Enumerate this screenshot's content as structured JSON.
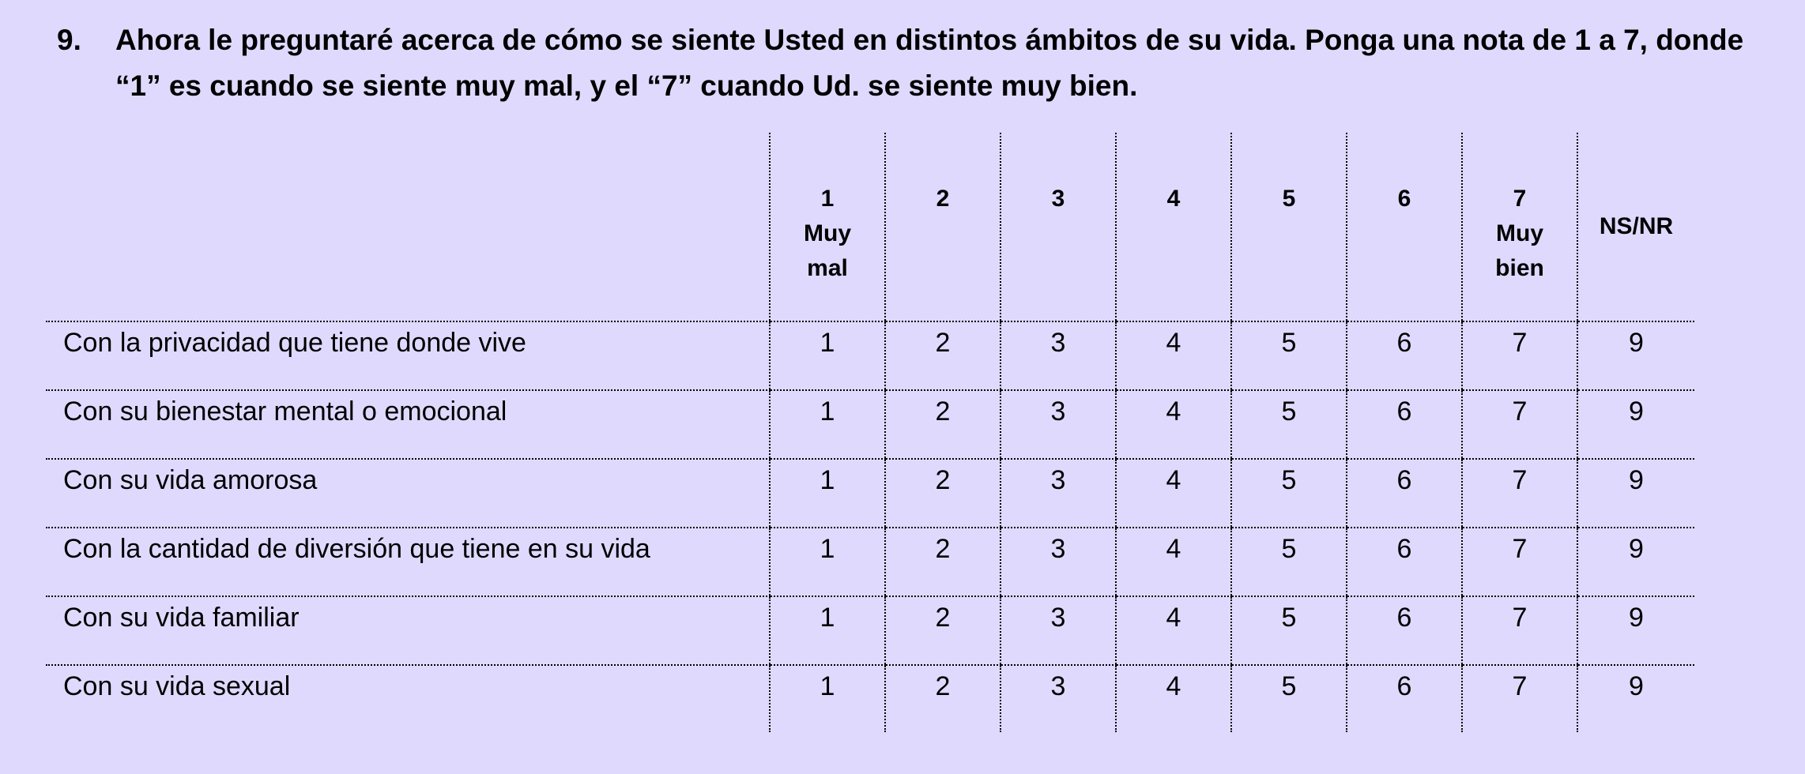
{
  "question": {
    "number": "9.",
    "line1": "Ahora le preguntaré acerca de cómo se siente Usted en distintos ámbitos de su vida. Ponga una nota de 1 a 7, donde",
    "line2": "“1” es cuando se siente muy mal, y el “7” cuando Ud. se siente muy bien."
  },
  "table": {
    "headers": [
      {
        "num": "1",
        "sub1": "Muy",
        "sub2": "mal"
      },
      {
        "num": "2",
        "sub1": "",
        "sub2": ""
      },
      {
        "num": "3",
        "sub1": "",
        "sub2": ""
      },
      {
        "num": "4",
        "sub1": "",
        "sub2": ""
      },
      {
        "num": "5",
        "sub1": "",
        "sub2": ""
      },
      {
        "num": "6",
        "sub1": "",
        "sub2": ""
      },
      {
        "num": "7",
        "sub1": "Muy",
        "sub2": "bien"
      }
    ],
    "ns_header": "NS/NR",
    "rows": [
      {
        "label": "Con la privacidad que tiene donde vive",
        "values": [
          "1",
          "2",
          "3",
          "4",
          "5",
          "6",
          "7",
          "9"
        ]
      },
      {
        "label": "Con su bienestar mental o emocional",
        "values": [
          "1",
          "2",
          "3",
          "4",
          "5",
          "6",
          "7",
          "9"
        ]
      },
      {
        "label": "Con su vida amorosa",
        "values": [
          "1",
          "2",
          "3",
          "4",
          "5",
          "6",
          "7",
          "9"
        ]
      },
      {
        "label": "Con la cantidad de diversión que tiene en su vida",
        "values": [
          "1",
          "2",
          "3",
          "4",
          "5",
          "6",
          "7",
          "9"
        ]
      },
      {
        "label": "Con su vida familiar",
        "values": [
          "1",
          "2",
          "3",
          "4",
          "5",
          "6",
          "7",
          "9"
        ]
      },
      {
        "label": "Con su vida sexual",
        "values": [
          "1",
          "2",
          "3",
          "4",
          "5",
          "6",
          "7",
          "9"
        ]
      }
    ]
  }
}
